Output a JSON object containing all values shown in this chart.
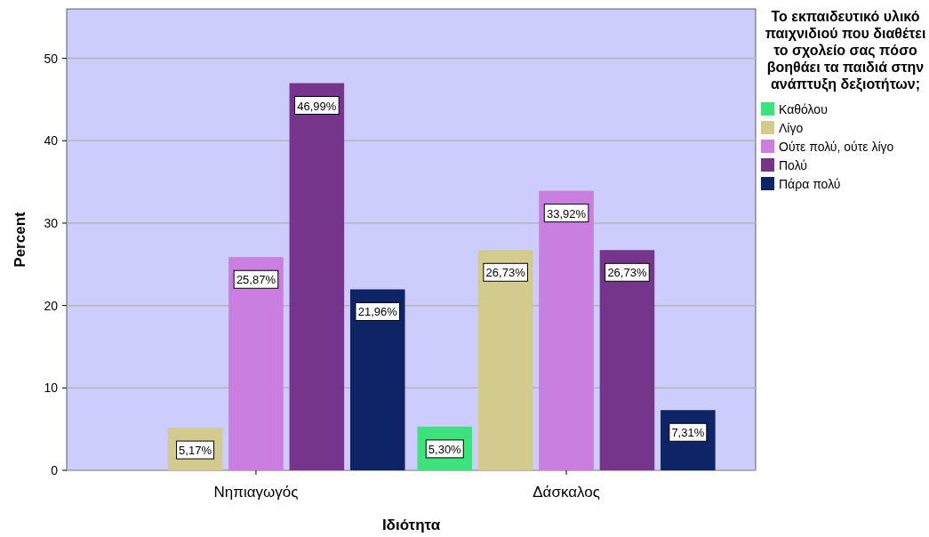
{
  "chart_data": {
    "type": "bar",
    "xlabel": "Ιδιότητα",
    "ylabel": "Percent",
    "legend_title": "Το εκπαιδευτικό υλικό παιχνιδιού που διαθέτει το σχολείο σας πόσο βοηθάει τα παιδιά στην ανάπτυξη δεξιοτήτων;",
    "categories": [
      "Νηπιαγωγός",
      "Δάσκαλος"
    ],
    "series": [
      {
        "name": "Καθόλου",
        "color": "#3ee27c",
        "values": [
          null,
          5.3
        ],
        "value_labels": [
          null,
          "5,30%"
        ]
      },
      {
        "name": "Λίγο",
        "color": "#d3cb8e",
        "values": [
          5.17,
          26.73
        ],
        "value_labels": [
          "5,17%",
          "26,73%"
        ]
      },
      {
        "name": "Ούτε πολύ, ούτε λίγο",
        "color": "#c97ee0",
        "values": [
          25.87,
          33.92
        ],
        "value_labels": [
          "25,87%",
          "33,92%"
        ]
      },
      {
        "name": "Πολύ",
        "color": "#74358a",
        "values": [
          46.99,
          26.73
        ],
        "value_labels": [
          "46,99%",
          "26,73%"
        ]
      },
      {
        "name": "Πάρα πολύ",
        "color": "#0e2466",
        "values": [
          21.96,
          7.31
        ],
        "value_labels": [
          "21,96%",
          "7,31%"
        ]
      }
    ],
    "ylim": [
      0,
      56
    ],
    "yticks": [
      0,
      10,
      20,
      30,
      40,
      50
    ],
    "grid": "y",
    "legend": "right"
  }
}
